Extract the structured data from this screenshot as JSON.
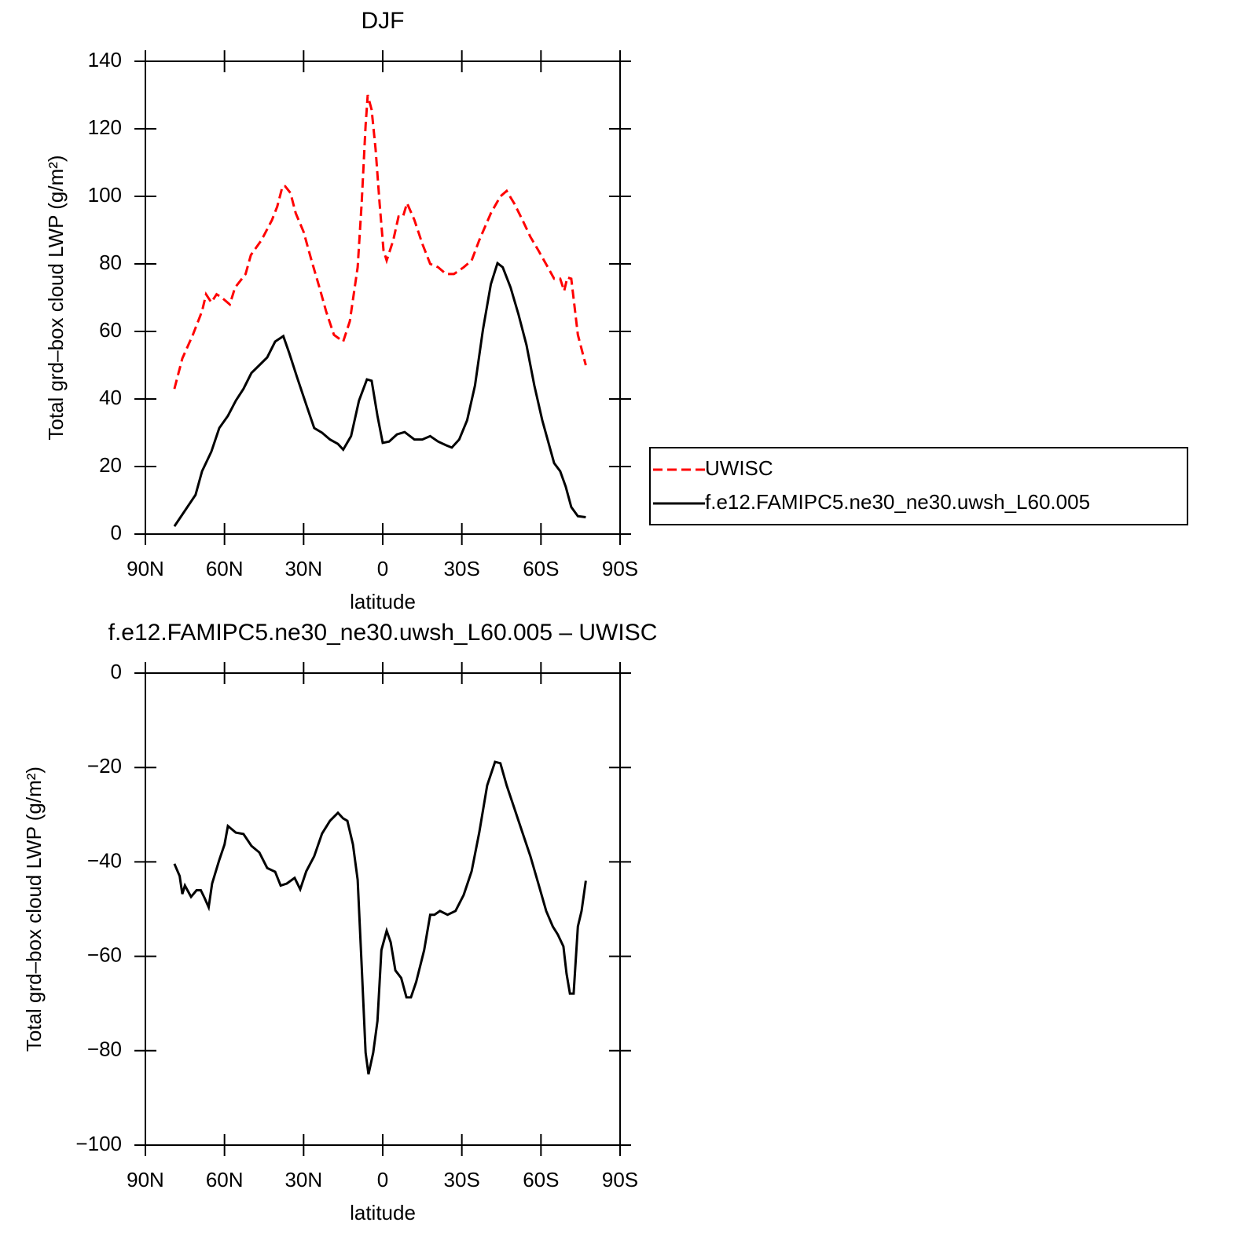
{
  "chart_data": [
    {
      "type": "line",
      "title": "DJF",
      "xlabel": "latitude",
      "ylabel": "Total grd–box cloud LWP (g/m²)",
      "xlim": [
        90,
        -90
      ],
      "xticks": [
        {
          "value": 90,
          "label": "90N"
        },
        {
          "value": 60,
          "label": "60N"
        },
        {
          "value": 30,
          "label": "30N"
        },
        0,
        {
          "value": -30,
          "label": "30S"
        },
        {
          "value": -60,
          "label": "60S"
        },
        {
          "value": -90,
          "label": "90S"
        }
      ],
      "ylim": [
        0,
        140
      ],
      "yticks": [
        0,
        20,
        40,
        60,
        80,
        100,
        120,
        140
      ],
      "legend": "right",
      "series": [
        {
          "name": "UWISC",
          "color": "#ff0000",
          "linestyle": "dashed",
          "x": [
            79,
            76,
            72,
            68.5,
            67,
            65,
            63,
            61,
            58,
            56,
            52,
            50,
            46,
            42,
            40,
            38,
            37,
            35,
            33,
            30,
            27,
            24,
            21.5,
            18.5,
            15,
            12.5,
            9.5,
            8,
            6.5,
            5.7,
            4.2,
            2.7,
            1.2,
            -0.3,
            -1.5,
            -4,
            -6,
            -7.7,
            -9.2,
            -12,
            -15,
            -18,
            -21,
            -24,
            -27,
            -30.7,
            -33.7,
            -36.6,
            -41,
            -44.6,
            -47,
            -50,
            -53,
            -56,
            -59,
            -62.6,
            -65,
            -67.3,
            -68.8,
            -70,
            -71.5,
            -74,
            -77
          ],
          "values": [
            43,
            52,
            59,
            66,
            71,
            68.6,
            71,
            70,
            68,
            73,
            77,
            82.6,
            87,
            93,
            97,
            103,
            103,
            101,
            95,
            89.5,
            81,
            73,
            66,
            59,
            57,
            63,
            79,
            98,
            121,
            130,
            125.6,
            114,
            98,
            84,
            81,
            87,
            94,
            94,
            98,
            93,
            86,
            80,
            79,
            77,
            77,
            79,
            81,
            87,
            95,
            100,
            101.6,
            97.7,
            93,
            88,
            84,
            79,
            75.6,
            75.6,
            72,
            76,
            75.6,
            59,
            50
          ]
        },
        {
          "name": "f.e12.FAMIPC5.ne30_ne30.uwsh_L60.005",
          "color": "#000000",
          "linestyle": "solid",
          "x": [
            79,
            76,
            71,
            68.5,
            65,
            62,
            58.7,
            55.7,
            52.8,
            49.8,
            46.8,
            43.8,
            40.8,
            37.7,
            35.4,
            32.5,
            29,
            26,
            23,
            20,
            17,
            15,
            12,
            9,
            6,
            4.2,
            2,
            0,
            -2.4,
            -5.4,
            -8.3,
            -12,
            -15,
            -18,
            -21,
            -24,
            -26.2,
            -29,
            -32,
            -35,
            -38,
            -41,
            -43.5,
            -45.5,
            -48.5,
            -51.5,
            -54.5,
            -57.5,
            -60.5,
            -65,
            -67.3,
            -69.4,
            -71.5,
            -74,
            -77
          ],
          "values": [
            2.3,
            5.8,
            11.6,
            18.6,
            24.4,
            31.4,
            35,
            39.5,
            43,
            47.7,
            50,
            52.3,
            57,
            58.6,
            53.5,
            46.5,
            38.3,
            31.4,
            30,
            28,
            26.7,
            25,
            29,
            39.5,
            45.8,
            45.4,
            35,
            27,
            27.4,
            29.5,
            30.2,
            28,
            28,
            29,
            27.4,
            26.3,
            25.6,
            28,
            33.7,
            44,
            60.5,
            74,
            80.2,
            79,
            73,
            65,
            56,
            44,
            33.7,
            21,
            18.6,
            14,
            8,
            5.3,
            5
          ]
        }
      ]
    },
    {
      "type": "line",
      "title": "f.e12.FAMIPC5.ne30_ne30.uwsh_L60.005 – UWISC",
      "xlabel": "latitude",
      "ylabel": "Total grd–box cloud LWP (g/m²)",
      "xlim": [
        90,
        -90
      ],
      "xticks": [
        {
          "value": 90,
          "label": "90N"
        },
        {
          "value": 60,
          "label": "60N"
        },
        {
          "value": 30,
          "label": "30N"
        },
        0,
        {
          "value": -30,
          "label": "30S"
        },
        {
          "value": -60,
          "label": "60S"
        },
        {
          "value": -90,
          "label": "90S"
        }
      ],
      "ylim": [
        -100,
        0
      ],
      "yticks": [
        {
          "value": -100,
          "label": "−100"
        },
        {
          "value": -80,
          "label": "−80"
        },
        {
          "value": -60,
          "label": "−60"
        },
        {
          "value": -40,
          "label": "−40"
        },
        {
          "value": -20,
          "label": "−20"
        },
        0
      ],
      "color": "#000000",
      "x": [
        79,
        77,
        76,
        75,
        72.7,
        70.6,
        69,
        67.6,
        66,
        64.7,
        62,
        60,
        58.7,
        55.7,
        52.8,
        49.8,
        46.8,
        43.8,
        40.8,
        38.7,
        36.4,
        33.4,
        31.3,
        29,
        26,
        23,
        20,
        17,
        15,
        13.4,
        11.3,
        9.5,
        8,
        6.5,
        5.4,
        3.6,
        2,
        0.5,
        -1.5,
        -3,
        -4.8,
        -7,
        -9,
        -10.7,
        -12.7,
        -15.7,
        -18,
        -19.6,
        -21.7,
        -24.6,
        -27.6,
        -30.7,
        -33.7,
        -36.6,
        -39.6,
        -42.6,
        -44.6,
        -47,
        -50,
        -53,
        -56,
        -59,
        -62,
        -64.5,
        -66.4,
        -68.5,
        -69.7,
        -71,
        -72.4,
        -74,
        -75.4,
        -77
      ],
      "values": [
        -40.4,
        -43,
        -46.8,
        -45,
        -47.4,
        -46,
        -46,
        -47.6,
        -49.6,
        -44.6,
        -39.6,
        -36.3,
        -32.4,
        -33.8,
        -34.1,
        -36.6,
        -38,
        -41.3,
        -42.1,
        -45,
        -44.6,
        -43.4,
        -45.8,
        -42,
        -38.8,
        -34,
        -31.3,
        -29.6,
        -30.8,
        -31.3,
        -36.3,
        -43.8,
        -62,
        -80.4,
        -85,
        -80.4,
        -73.7,
        -58.7,
        -54.6,
        -57,
        -63,
        -64.6,
        -68.7,
        -68.7,
        -65.4,
        -58.7,
        -51.2,
        -51.2,
        -50.4,
        -51.2,
        -50.4,
        -47,
        -42,
        -33.8,
        -23.8,
        -18.8,
        -19.1,
        -23.8,
        -28.8,
        -33.8,
        -38.8,
        -44.6,
        -50.4,
        -53.7,
        -55.4,
        -57.9,
        -63.7,
        -67.9,
        -67.9,
        -53.7,
        -50.4,
        -44
      ]
    }
  ]
}
